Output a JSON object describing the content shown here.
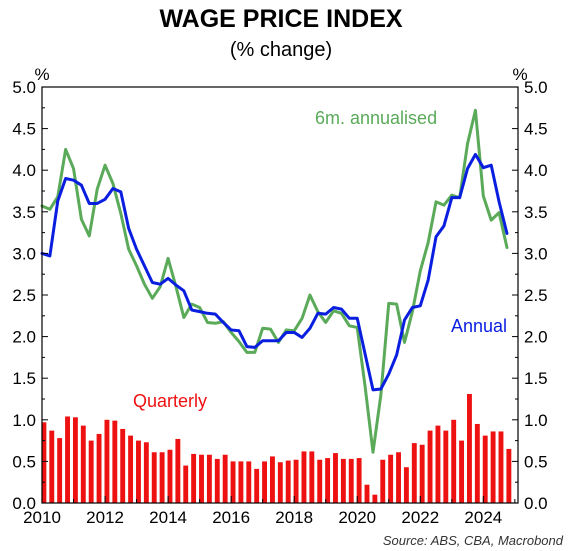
{
  "chart_data": {
    "type": "bar",
    "title": "WAGE PRICE INDEX",
    "subtitle": "(% change)",
    "y_unit_left": "%",
    "y_unit_right": "%",
    "ylim": [
      0,
      5.0
    ],
    "yticks": [
      "0.0",
      "0.5",
      "1.0",
      "1.5",
      "2.0",
      "2.5",
      "3.0",
      "3.5",
      "4.0",
      "4.5",
      "5.0"
    ],
    "xlim": [
      2010,
      2025.1
    ],
    "xticks": [
      "2010",
      "2012",
      "2014",
      "2016",
      "2018",
      "2020",
      "2022",
      "2024"
    ],
    "grid": false,
    "source": "Source: ABS, CBA, Macrobond",
    "colors": {
      "quarterly": "#ee1111",
      "annual": "#0a1ee0",
      "six_month": "#5aaa5a"
    },
    "series": [
      {
        "name": "Quarterly",
        "type": "bar",
        "x": [
          2010.0,
          2010.25,
          2010.5,
          2010.75,
          2011.0,
          2011.25,
          2011.5,
          2011.75,
          2012.0,
          2012.25,
          2012.5,
          2012.75,
          2013.0,
          2013.25,
          2013.5,
          2013.75,
          2014.0,
          2014.25,
          2014.5,
          2014.75,
          2015.0,
          2015.25,
          2015.5,
          2015.75,
          2016.0,
          2016.25,
          2016.5,
          2016.75,
          2017.0,
          2017.25,
          2017.5,
          2017.75,
          2018.0,
          2018.25,
          2018.5,
          2018.75,
          2019.0,
          2019.25,
          2019.5,
          2019.75,
          2020.0,
          2020.25,
          2020.5,
          2020.75,
          2021.0,
          2021.25,
          2021.5,
          2021.75,
          2022.0,
          2022.25,
          2022.5,
          2022.75,
          2023.0,
          2023.25,
          2023.5,
          2023.75,
          2024.0,
          2024.25,
          2024.5,
          2024.75
        ],
        "values": [
          0.97,
          0.87,
          0.78,
          1.04,
          1.03,
          0.93,
          0.75,
          0.83,
          1.0,
          0.99,
          0.89,
          0.81,
          0.75,
          0.73,
          0.61,
          0.61,
          0.64,
          0.77,
          0.45,
          0.59,
          0.58,
          0.58,
          0.53,
          0.58,
          0.5,
          0.5,
          0.5,
          0.41,
          0.5,
          0.56,
          0.49,
          0.51,
          0.52,
          0.62,
          0.62,
          0.52,
          0.54,
          0.6,
          0.53,
          0.53,
          0.54,
          0.22,
          0.1,
          0.52,
          0.58,
          0.61,
          0.43,
          0.72,
          0.7,
          0.87,
          0.93,
          0.87,
          1.0,
          0.75,
          1.31,
          0.95,
          0.81,
          0.86,
          0.86,
          0.65
        ]
      },
      {
        "name": "Annual",
        "type": "line",
        "x": [
          2010.0,
          2010.25,
          2010.5,
          2010.75,
          2011.0,
          2011.25,
          2011.5,
          2011.75,
          2012.0,
          2012.25,
          2012.5,
          2012.75,
          2013.0,
          2013.25,
          2013.5,
          2013.75,
          2014.0,
          2014.25,
          2014.5,
          2014.75,
          2015.0,
          2015.25,
          2015.5,
          2015.75,
          2016.0,
          2016.25,
          2016.5,
          2016.75,
          2017.0,
          2017.25,
          2017.5,
          2017.75,
          2018.0,
          2018.25,
          2018.5,
          2018.75,
          2019.0,
          2019.25,
          2019.5,
          2019.75,
          2020.0,
          2020.25,
          2020.5,
          2020.75,
          2021.0,
          2021.25,
          2021.5,
          2021.75,
          2022.0,
          2022.25,
          2022.5,
          2022.75,
          2023.0,
          2023.25,
          2023.5,
          2023.75,
          2024.0,
          2024.25,
          2024.5,
          2024.75
        ],
        "values": [
          3.0,
          2.97,
          3.63,
          3.9,
          3.88,
          3.82,
          3.6,
          3.6,
          3.65,
          3.78,
          3.74,
          3.3,
          3.05,
          2.85,
          2.65,
          2.63,
          2.7,
          2.62,
          2.55,
          2.32,
          2.3,
          2.28,
          2.27,
          2.17,
          2.08,
          2.07,
          1.88,
          1.87,
          1.95,
          1.95,
          1.95,
          2.05,
          2.05,
          1.99,
          2.1,
          2.28,
          2.27,
          2.35,
          2.33,
          2.22,
          2.22,
          1.79,
          1.36,
          1.37,
          1.55,
          1.78,
          2.2,
          2.35,
          2.37,
          2.68,
          3.2,
          3.33,
          3.67,
          3.67,
          4.02,
          4.19,
          4.03,
          4.06,
          3.62,
          3.24
        ]
      },
      {
        "name": "6m. annualised",
        "type": "line",
        "x": [
          2010.0,
          2010.25,
          2010.5,
          2010.75,
          2011.0,
          2011.25,
          2011.5,
          2011.75,
          2012.0,
          2012.25,
          2012.5,
          2012.75,
          2013.0,
          2013.25,
          2013.5,
          2013.75,
          2014.0,
          2014.25,
          2014.5,
          2014.75,
          2015.0,
          2015.25,
          2015.5,
          2015.75,
          2016.0,
          2016.25,
          2016.5,
          2016.75,
          2017.0,
          2017.25,
          2017.5,
          2017.75,
          2018.0,
          2018.25,
          2018.5,
          2018.75,
          2019.0,
          2019.25,
          2019.5,
          2019.75,
          2020.0,
          2020.25,
          2020.5,
          2020.75,
          2021.0,
          2021.25,
          2021.5,
          2021.75,
          2022.0,
          2022.25,
          2022.5,
          2022.75,
          2023.0,
          2023.25,
          2023.5,
          2023.75,
          2024.0,
          2024.25,
          2024.5,
          2024.75
        ],
        "values": [
          3.57,
          3.53,
          3.68,
          4.25,
          4.02,
          3.41,
          3.21,
          3.77,
          4.06,
          3.84,
          3.48,
          3.05,
          2.85,
          2.63,
          2.46,
          2.6,
          2.94,
          2.6,
          2.23,
          2.39,
          2.35,
          2.17,
          2.16,
          2.18,
          2.05,
          1.94,
          1.81,
          1.81,
          2.1,
          2.09,
          1.93,
          2.08,
          2.07,
          2.22,
          2.5,
          2.3,
          2.17,
          2.31,
          2.28,
          2.13,
          2.11,
          1.4,
          0.61,
          1.3,
          2.4,
          2.39,
          1.93,
          2.3,
          2.79,
          3.13,
          3.62,
          3.58,
          3.7,
          3.67,
          4.32,
          4.72,
          3.69,
          3.4,
          3.49,
          3.07
        ]
      }
    ],
    "annotations": {
      "quarterly_label": "Quarterly",
      "annual_label": "Annual",
      "six_month_label": "6m. annualised"
    }
  }
}
